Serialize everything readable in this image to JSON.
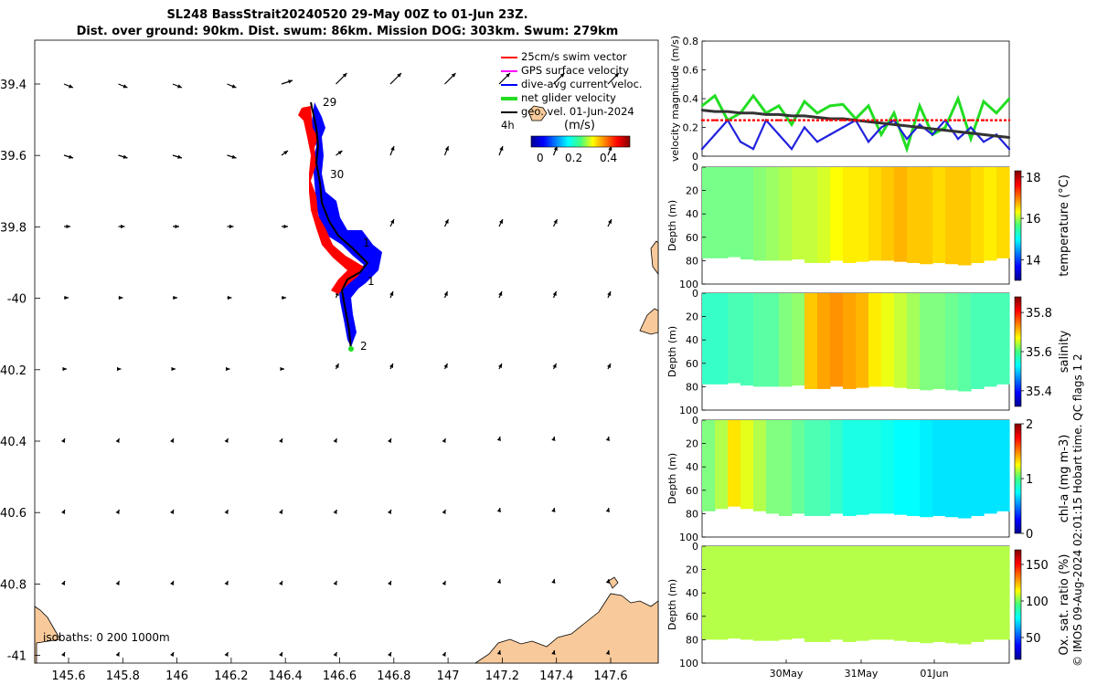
{
  "title": {
    "line1": "SL248 BassStrait20240520 29-May 00Z to 01-Jun 23Z.",
    "line2": "Dist. over ground: 90km. Dist. swum: 86km. Mission DOG: 303km. Swum: 279km"
  },
  "map": {
    "legend": {
      "swim": "25cm/s swim vector",
      "gps": "GPS surface velocity",
      "diveavg": "dive-avg current veloc.",
      "net": "net glider velocity",
      "geo": "geo. vel. 01-Jun-2024",
      "geo_prefix": "4h"
    },
    "colorbar": {
      "unit": "(m/s)",
      "ticks": [
        "0",
        "0.2",
        "0.4"
      ]
    },
    "isobaths": "isobaths: 0   200  1000m",
    "lon_ticks": [
      "145.6",
      "145.8",
      "146",
      "146.2",
      "146.4",
      "146.6",
      "146.8",
      "147",
      "147.2",
      "147.4",
      "147.6"
    ],
    "lat_ticks": [
      "39.4",
      "39.6",
      "39.8",
      "-40",
      "40.2",
      "40.4",
      "40.6",
      "40.8",
      "-41"
    ],
    "day_labels": [
      "29",
      "30",
      "1",
      "1",
      "2"
    ],
    "colors": {
      "land": "#f8c99a",
      "track": "#000000",
      "blue_flag": "#0000ff",
      "red_flag": "#ff0000"
    }
  },
  "chart_data": [
    {
      "type": "line",
      "title": "",
      "ylabel": "velocity magnitude (m/s)",
      "ylim": [
        0,
        0.8
      ],
      "yticks": [
        "0",
        "0.2",
        "0.4",
        "0.6",
        "0.8"
      ],
      "x": [
        0,
        4,
        8,
        12,
        16,
        20,
        24,
        28,
        32,
        36,
        40,
        44,
        48,
        52,
        56,
        60,
        64,
        68,
        72,
        76,
        80,
        84,
        88,
        92,
        96
      ],
      "series": [
        {
          "name": "net glider velocity (green)",
          "color": "#22dd22",
          "values": [
            0.35,
            0.42,
            0.25,
            0.3,
            0.42,
            0.3,
            0.35,
            0.22,
            0.38,
            0.3,
            0.35,
            0.36,
            0.26,
            0.35,
            0.15,
            0.3,
            0.05,
            0.35,
            0.15,
            0.2,
            0.4,
            0.12,
            0.38,
            0.3,
            0.4
          ]
        },
        {
          "name": "dive-avg current (blue)",
          "color": "#2222dd",
          "values": [
            0.05,
            0.15,
            0.25,
            0.1,
            0.05,
            0.25,
            0.15,
            0.05,
            0.2,
            0.1,
            0.15,
            0.2,
            0.25,
            0.1,
            0.2,
            0.25,
            0.12,
            0.22,
            0.15,
            0.25,
            0.12,
            0.2,
            0.1,
            0.15,
            0.05
          ]
        },
        {
          "name": "geo. vel. (black)",
          "color": "#333333",
          "values": [
            0.32,
            0.31,
            0.31,
            0.3,
            0.3,
            0.29,
            0.29,
            0.28,
            0.28,
            0.27,
            0.26,
            0.26,
            0.25,
            0.24,
            0.23,
            0.22,
            0.21,
            0.2,
            0.19,
            0.18,
            0.17,
            0.16,
            0.15,
            0.14,
            0.13
          ]
        },
        {
          "name": "swim (red)",
          "color": "#ff0000",
          "values": [
            0.25,
            0.25,
            0.25,
            0.25,
            0.25,
            0.25,
            0.25,
            0.25,
            0.25,
            0.25,
            0.25,
            0.25,
            0.25,
            0.25,
            0.25,
            0.25,
            0.25,
            0.25,
            0.25,
            0.25,
            0.25,
            0.25,
            0.25,
            0.25,
            0.25
          ]
        }
      ]
    },
    {
      "type": "heatmap",
      "variable": "temperature",
      "ylabel": "Depth (m)",
      "yticks": [
        "0",
        "20",
        "40",
        "60",
        "80",
        "100"
      ],
      "colorbar_label": "temperature (°C)",
      "colorbar_ticks": [
        "14",
        "16",
        "18"
      ],
      "vmin": 13,
      "vmax": 18.3,
      "columns": [
        15.6,
        15.6,
        15.6,
        15.6,
        15.7,
        15.8,
        15.9,
        16.0,
        16.0,
        16.1,
        16.3,
        16.4,
        16.4,
        16.5,
        16.6,
        16.7,
        16.6,
        16.6,
        16.5,
        16.6,
        16.6,
        16.5,
        16.4,
        16.5
      ],
      "max_depth": [
        78,
        78,
        77,
        79,
        80,
        80,
        80,
        79,
        82,
        82,
        80,
        82,
        81,
        80,
        80,
        81,
        82,
        83,
        82,
        83,
        84,
        82,
        80,
        78
      ]
    },
    {
      "type": "heatmap",
      "variable": "salinity",
      "ylabel": "Depth (m)",
      "yticks": [
        "0",
        "20",
        "40",
        "60",
        "80",
        "100"
      ],
      "colorbar_label": "salinity",
      "colorbar_ticks": [
        "35.4",
        "35.6",
        "35.8"
      ],
      "vmin": 35.32,
      "vmax": 35.88,
      "columns": [
        35.56,
        35.56,
        35.57,
        35.57,
        35.58,
        35.58,
        35.6,
        35.61,
        35.7,
        35.72,
        35.73,
        35.72,
        35.71,
        35.68,
        35.66,
        35.64,
        35.62,
        35.6,
        35.6,
        35.59,
        35.58,
        35.57,
        35.57,
        35.57
      ],
      "max_depth": [
        78,
        78,
        77,
        79,
        80,
        80,
        80,
        79,
        82,
        82,
        80,
        82,
        81,
        80,
        80,
        81,
        82,
        83,
        82,
        83,
        84,
        82,
        80,
        78
      ]
    },
    {
      "type": "heatmap",
      "variable": "chl-a",
      "ylabel": "Depth (m)",
      "yticks": [
        "0",
        "20",
        "40",
        "60",
        "80",
        "100"
      ],
      "colorbar_label": "chl-a (mg m-3)",
      "colorbar_ticks": [
        "0",
        "1",
        "2"
      ],
      "vmin": 0,
      "vmax": 2,
      "columns": [
        1.0,
        1.1,
        1.3,
        1.2,
        1.1,
        1.0,
        1.0,
        0.95,
        0.9,
        0.9,
        0.85,
        0.8,
        0.8,
        0.8,
        0.78,
        0.75,
        0.75,
        0.72,
        0.7,
        0.7,
        0.7,
        0.7,
        0.7,
        0.7
      ],
      "max_depth": [
        78,
        76,
        74,
        76,
        78,
        80,
        82,
        80,
        82,
        82,
        80,
        82,
        81,
        80,
        80,
        81,
        82,
        83,
        82,
        83,
        84,
        82,
        80,
        78
      ]
    },
    {
      "type": "heatmap",
      "variable": "oxygen saturation",
      "ylabel": "Depth (m)",
      "yticks": [
        "0",
        "20",
        "40",
        "60",
        "80",
        "100"
      ],
      "colorbar_label": "Ox. sat. ratio (%)",
      "colorbar_ticks": [
        "50",
        "100",
        "150"
      ],
      "vmin": 20,
      "vmax": 170,
      "columns": [
        103,
        103,
        103,
        103,
        103,
        103,
        103,
        103,
        103,
        103,
        103,
        103,
        103,
        103,
        103,
        103,
        103,
        103,
        103,
        103,
        103,
        103,
        103,
        103
      ],
      "max_depth": [
        80,
        80,
        79,
        80,
        81,
        81,
        80,
        79,
        82,
        82,
        80,
        82,
        81,
        80,
        80,
        81,
        82,
        83,
        82,
        83,
        84,
        82,
        80,
        80
      ],
      "xticks": [
        "30May",
        "31May",
        "01Jun"
      ]
    }
  ],
  "copyright": "© IMOS 09-Aug-2024 02:01:15 Hobart time. QC flags 1  2"
}
